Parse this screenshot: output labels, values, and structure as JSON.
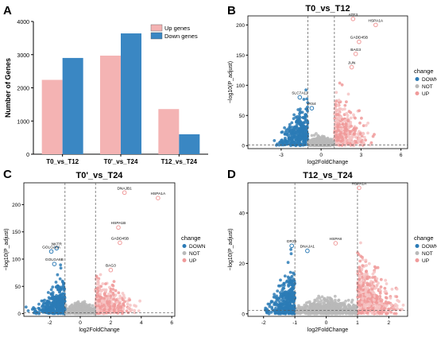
{
  "panels": {
    "a": "A",
    "b": "B",
    "c": "C",
    "d": "D"
  },
  "chart_data": [
    {
      "type": "bar",
      "title": "",
      "ylabel": "Number of Genes",
      "categories": [
        "T0_vs_T12",
        "T0'_vs_T24",
        "T12_vs_T24"
      ],
      "ylim": [
        0,
        4000
      ],
      "yticks": [
        "0",
        "1000",
        "2000",
        "3000",
        "4000"
      ],
      "legend": "top-right",
      "series": [
        {
          "name": "Up genes",
          "color": "#f4b3b3",
          "values": [
            2240,
            2970,
            1360
          ]
        },
        {
          "name": "Down genes",
          "color": "#3a87c3",
          "values": [
            2900,
            3640,
            600
          ]
        }
      ]
    },
    {
      "type": "scatter",
      "title": "T0_vs_T12",
      "xlabel": "log2FoldChange",
      "ylabel": "−log10(P_adjust)",
      "xlim": [
        -5.5,
        6.5
      ],
      "ylim": [
        -5,
        215
      ],
      "xticks": [
        "-3",
        "0",
        "3",
        "6"
      ],
      "yticks": [
        "0",
        "50",
        "100",
        "150",
        "200"
      ],
      "legend": {
        "title": "change",
        "items": [
          "DOWN",
          "NOT",
          "UP"
        ]
      },
      "thresholds": {
        "x": [
          -1,
          1
        ],
        "y": 1.3
      },
      "labels": [
        {
          "text": "ATF3",
          "x": 2.4,
          "y": 210
        },
        {
          "text": "HSPA1A",
          "x": 4.1,
          "y": 200
        },
        {
          "text": "GADD45B",
          "x": 2.85,
          "y": 172
        },
        {
          "text": "BAG3",
          "x": 2.6,
          "y": 152
        },
        {
          "text": "JUN",
          "x": 2.3,
          "y": 130
        },
        {
          "text": "SLC7A11",
          "x": -1.6,
          "y": 80
        },
        {
          "text": "IRS4",
          "x": -0.7,
          "y": 62
        }
      ]
    },
    {
      "type": "scatter",
      "title": "T0'_vs_T24",
      "xlabel": "log2FoldChange",
      "ylabel": "−log10(P_adjust)",
      "xlim": [
        -3.7,
        6.2
      ],
      "ylim": [
        -5,
        240
      ],
      "xticks": [
        "-2",
        "0",
        "2",
        "4",
        "6"
      ],
      "yticks": [
        "0",
        "50",
        "100",
        "150",
        "200"
      ],
      "legend": {
        "title": "change",
        "items": [
          "DOWN",
          "NOT",
          "UP"
        ]
      },
      "thresholds": {
        "x": [
          -1,
          1
        ],
        "y": 1.3
      },
      "labels": [
        {
          "text": "DNAJB1",
          "x": 2.9,
          "y": 222
        },
        {
          "text": "HSPA1A",
          "x": 5.1,
          "y": 212
        },
        {
          "text": "HSPA1B",
          "x": 2.5,
          "y": 158
        },
        {
          "text": "GADD45B",
          "x": 2.6,
          "y": 130
        },
        {
          "text": "NKTR",
          "x": -1.55,
          "y": 120
        },
        {
          "text": "GOLGA6A",
          "x": -1.9,
          "y": 114
        },
        {
          "text": "GOLGA6B",
          "x": -1.7,
          "y": 91
        },
        {
          "text": "BAG3",
          "x": 2.0,
          "y": 80
        }
      ]
    },
    {
      "type": "scatter",
      "title": "T12_vs_T24",
      "xlabel": "log2FoldChange",
      "ylabel": "−log10(P_adjust)",
      "xlim": [
        -2.5,
        2.6
      ],
      "ylim": [
        -1,
        52
      ],
      "xticks": [
        "-2",
        "-1",
        "0",
        "1",
        "2"
      ],
      "yticks": [
        "0",
        "20",
        "40"
      ],
      "legend": {
        "title": "change",
        "items": [
          "DOWN",
          "NOT",
          "UP"
        ]
      },
      "thresholds": {
        "x": [
          -1,
          1
        ],
        "y": 1.3
      },
      "labels": [
        {
          "text": "HSPA1A",
          "x": 1.05,
          "y": 50
        },
        {
          "text": "DNAJA1",
          "x": -0.6,
          "y": 25
        },
        {
          "text": "DR35",
          "x": -1.1,
          "y": 27
        },
        {
          "text": "HSPA8",
          "x": 0.3,
          "y": 28
        }
      ]
    }
  ],
  "colors": {
    "down": "#2c7bb6",
    "not": "#b9b9b9",
    "up": "#f09a9a",
    "upLight": "#f6c4c4"
  }
}
